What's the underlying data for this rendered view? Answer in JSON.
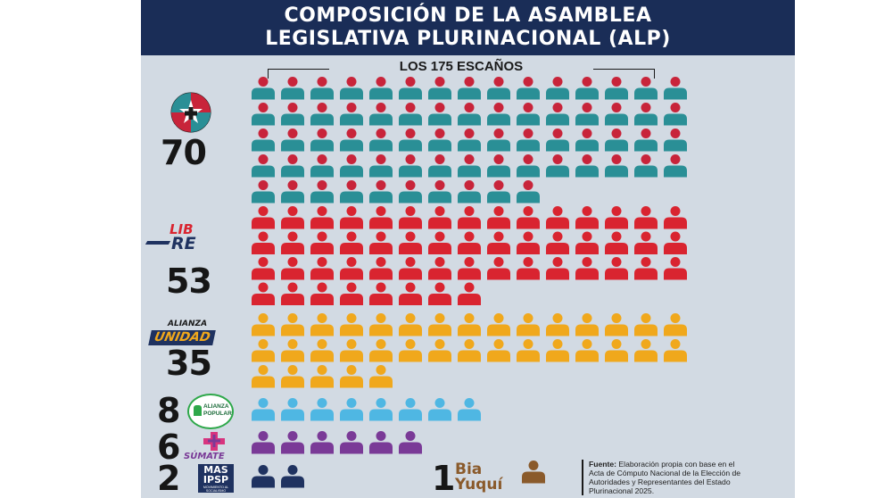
{
  "title_line1": "COMPOSICIÓN DE LA ASAMBLEA",
  "title_line2": "LEGISLATIVA PLURINACIONAL (ALP)",
  "seats_label": "LOS 175 ESCAÑOS",
  "total_seats": 175,
  "parties": [
    {
      "key": "pdc",
      "logo": "cross-star-icon",
      "seats": 70,
      "seats_label": "70",
      "color_head": "#c8243a",
      "color_body": "#2a8f96"
    },
    {
      "key": "libre",
      "logo_text_1": "LIB",
      "logo_text_2": "RE",
      "seats": 53,
      "seats_label": "53",
      "color": "#d92430"
    },
    {
      "key": "unidad",
      "logo_text_1": "ALIANZA",
      "logo_text_2": "UNIDAD",
      "seats": 35,
      "seats_label": "35",
      "color": "#f0a81c"
    },
    {
      "key": "ap",
      "logo_text_1": "ALIANZA",
      "logo_text_2": "POPULAR",
      "seats": 8,
      "seats_label": "8",
      "color": "#4fb7e3"
    },
    {
      "key": "sumate",
      "logo_text": "SÚMATE",
      "seats": 6,
      "seats_label": "6",
      "color": "#7a3a97"
    },
    {
      "key": "mas",
      "logo_text_1": "MAS",
      "logo_text_2": "IPSP",
      "logo_text_3": "MOVIMIENTO AL SOCIALISMO",
      "seats": 2,
      "seats_label": "2",
      "color": "#1f3260"
    },
    {
      "key": "biayuqui",
      "logo_text_1": "Bia",
      "logo_text_2": "Yuquí",
      "seats": 1,
      "seats_label": "1",
      "color": "#8a5a2b"
    }
  ],
  "source": {
    "label": "Fuente:",
    "text": "Elaboración propia con base en el Acta de Cómputo Nacional de la Elección de Autoridades y Representantes del Estado Plurinacional 2025."
  }
}
